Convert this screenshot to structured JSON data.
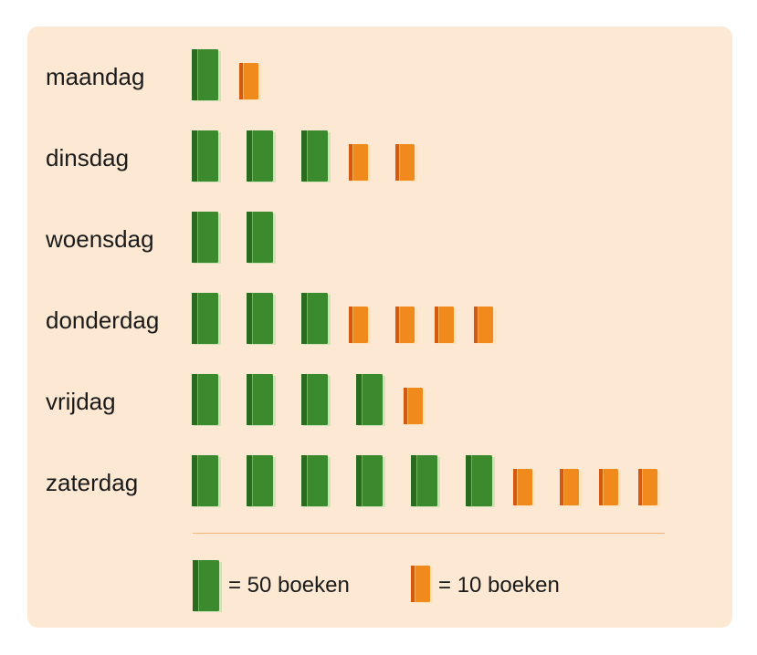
{
  "chart_data": {
    "type": "pictograph",
    "categories": [
      "maandag",
      "dinsdag",
      "woensdag",
      "donderdag",
      "vrijdag",
      "zaterdag"
    ],
    "series": [
      {
        "symbol": "green-book",
        "values": [
          1,
          3,
          2,
          3,
          4,
          6
        ]
      },
      {
        "symbol": "orange-book",
        "values": [
          1,
          2,
          0,
          4,
          1,
          4
        ]
      }
    ],
    "legend": [
      {
        "symbol": "green-book",
        "label": "= 50 boeken",
        "value": 50
      },
      {
        "symbol": "orange-book",
        "label": "= 10 boeken",
        "value": 10
      }
    ],
    "colors": {
      "green": "#3b8a2d",
      "green_dark": "#2a6b1f",
      "orange": "#f08a1c",
      "orange_dark": "#d35a10",
      "panel": "#fde9d3"
    }
  }
}
